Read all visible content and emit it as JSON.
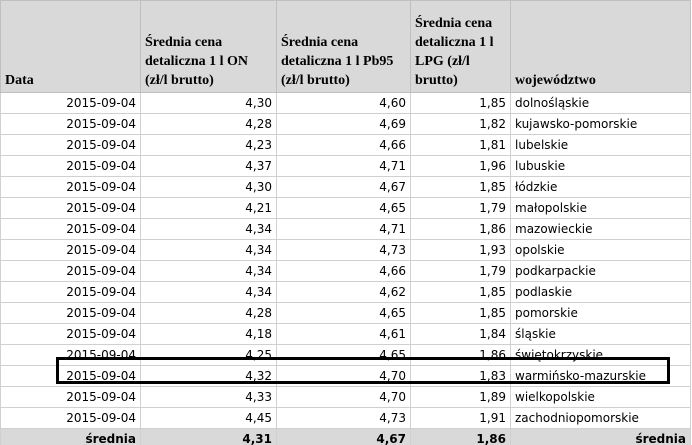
{
  "table": {
    "header": [
      "Data",
      "Średnia cena detaliczna 1 l ON (zł/l brutto)",
      "Średnia cena detaliczna 1 l Pb95 (zł/l brutto)",
      "Średnia cena detaliczna 1 l LPG (zł/l brutto)",
      "województwo"
    ],
    "rows": [
      [
        "2015-09-04",
        "4,30",
        "4,60",
        "1,85",
        "dolnośląskie"
      ],
      [
        "2015-09-04",
        "4,28",
        "4,69",
        "1,82",
        "kujawsko-pomorskie"
      ],
      [
        "2015-09-04",
        "4,23",
        "4,66",
        "1,81",
        "lubelskie"
      ],
      [
        "2015-09-04",
        "4,37",
        "4,71",
        "1,96",
        "lubuskie"
      ],
      [
        "2015-09-04",
        "4,30",
        "4,67",
        "1,85",
        "łódzkie"
      ],
      [
        "2015-09-04",
        "4,21",
        "4,65",
        "1,79",
        "małopolskie"
      ],
      [
        "2015-09-04",
        "4,34",
        "4,71",
        "1,86",
        "mazowieckie"
      ],
      [
        "2015-09-04",
        "4,34",
        "4,73",
        "1,93",
        "opolskie"
      ],
      [
        "2015-09-04",
        "4,34",
        "4,66",
        "1,79",
        "podkarpackie"
      ],
      [
        "2015-09-04",
        "4,34",
        "4,62",
        "1,85",
        "podlaskie"
      ],
      [
        "2015-09-04",
        "4,28",
        "4,65",
        "1,85",
        "pomorskie"
      ],
      [
        "2015-09-04",
        "4,18",
        "4,61",
        "1,84",
        "śląskie"
      ],
      [
        "2015-09-04",
        "4,25",
        "4,65",
        "1,86",
        "świętokrzyskie"
      ],
      [
        "2015-09-04",
        "4,32",
        "4,70",
        "1,83",
        "warmińsko-mazurskie"
      ],
      [
        "2015-09-04",
        "4,33",
        "4,70",
        "1,89",
        "wielkopolskie"
      ],
      [
        "2015-09-04",
        "4,45",
        "4,73",
        "1,91",
        "zachodniopomorskie"
      ]
    ],
    "footer": [
      "średnia",
      "4,31",
      "4,67",
      "1,86",
      "średnia"
    ]
  }
}
